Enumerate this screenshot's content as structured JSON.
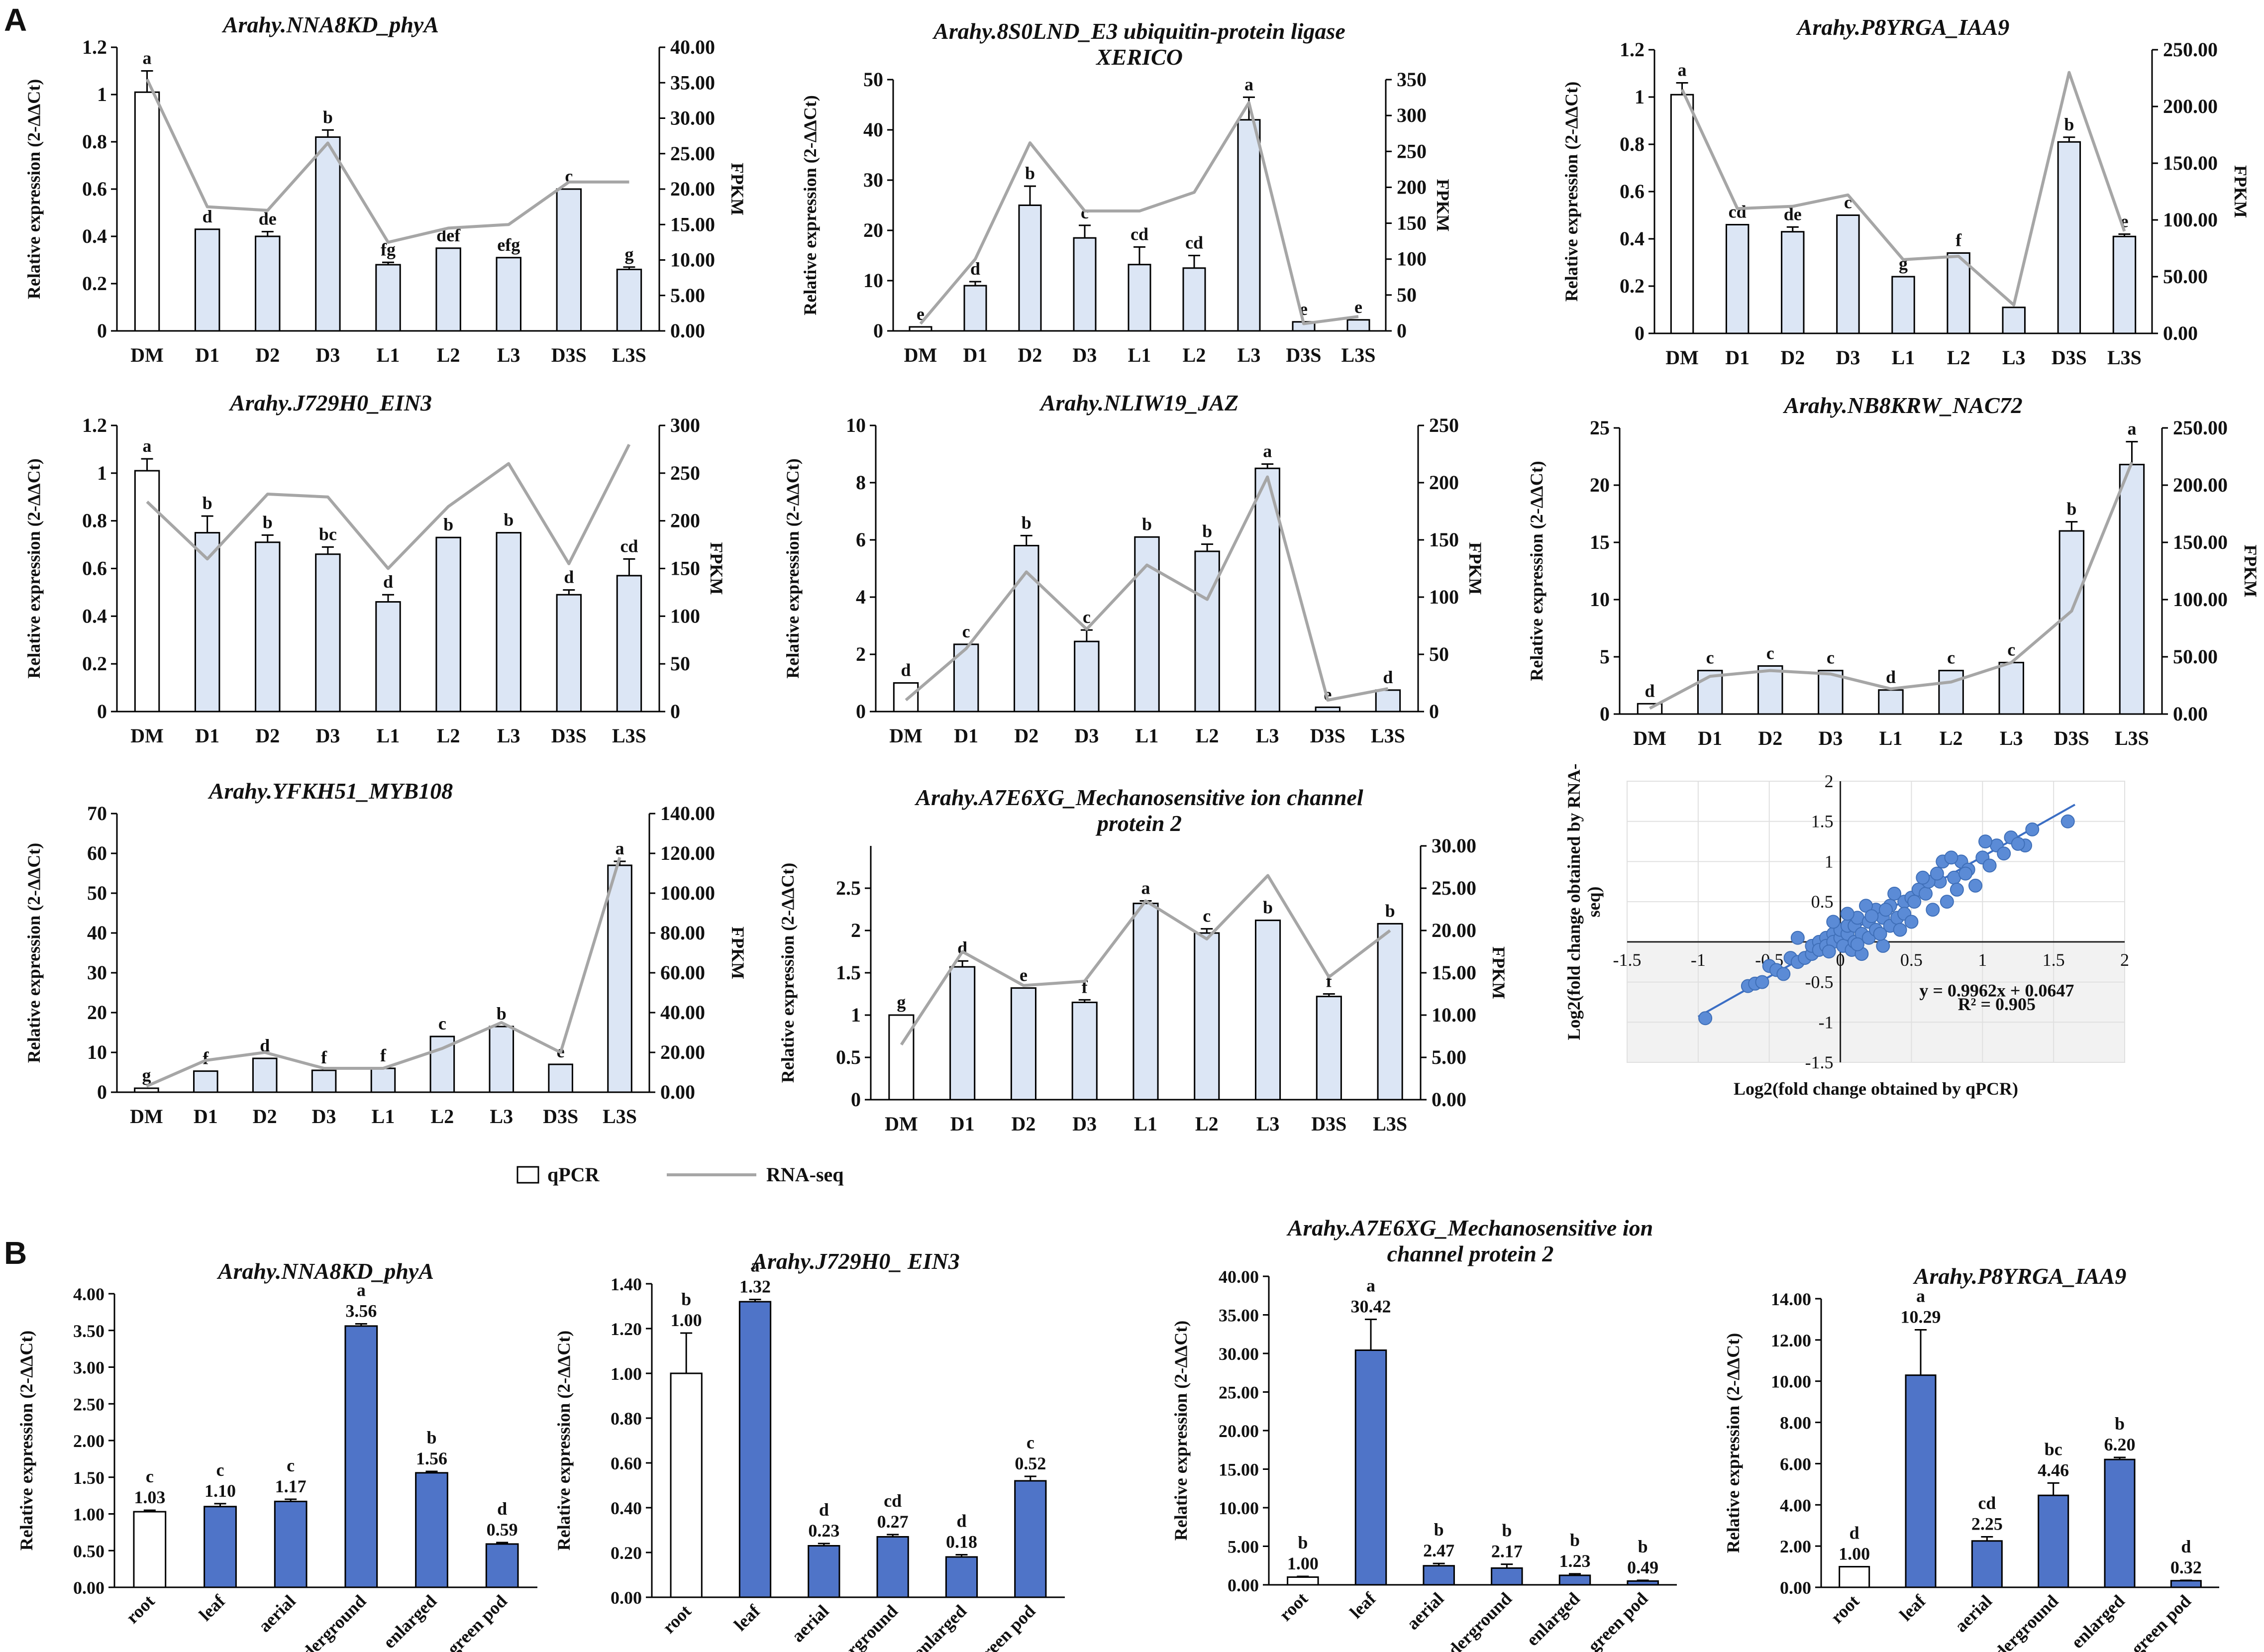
{
  "figure": {
    "panel_a_label": "A",
    "panel_b_label": "B",
    "legend": {
      "qpcr": "qPCR",
      "rnaseq": "RNA-seq"
    }
  },
  "colors": {
    "bar_light": "#dce6f5",
    "bar_white": "#ffffff",
    "bar_blue": "#4f74c8",
    "line": "#a6a6a6",
    "scatter": "#5b8bd6",
    "fit": "#3b6ec4",
    "axis": "#000000"
  },
  "chart_data": [
    {
      "type": "bar+line",
      "title": "Arahy.NNA8KD_phyA",
      "categories": [
        "DM",
        "D1",
        "D2",
        "D3",
        "L1",
        "L2",
        "L3",
        "D3S",
        "L3S"
      ],
      "values": [
        1.01,
        0.43,
        0.4,
        0.82,
        0.28,
        0.35,
        0.31,
        0.6,
        0.26
      ],
      "errors": [
        0.09,
        0,
        0.02,
        0.03,
        0.01,
        0,
        0,
        0,
        0.01
      ],
      "letters": [
        "a",
        "d",
        "de",
        "b",
        "fg",
        "def",
        "efg",
        "c",
        "g"
      ],
      "line": [
        35.5,
        17.5,
        17.0,
        26.5,
        12.5,
        14.5,
        15.0,
        21.0,
        21.0
      ],
      "ylabel": "Relative expression (2-ΔΔCt)",
      "y2label": "FPKM",
      "ylim": [
        0,
        1.2
      ],
      "yticks": [
        "0",
        "0.2",
        "0.4",
        "0.6",
        "0.8",
        "1",
        "1.2"
      ],
      "y2lim": [
        0,
        40
      ],
      "y2ticks": [
        "0.00",
        "5.00",
        "10.00",
        "15.00",
        "20.00",
        "25.00",
        "30.00",
        "35.00",
        "40.00"
      ]
    },
    {
      "type": "bar+line",
      "title": "Arahy.8S0LND_E3 ubiquitin-protein ligase XERICO",
      "categories": [
        "DM",
        "D1",
        "D2",
        "D3",
        "L1",
        "L2",
        "L3",
        "D3S",
        "L3S"
      ],
      "values": [
        0.8,
        9.0,
        25.0,
        18.5,
        13.2,
        12.5,
        42.0,
        1.8,
        2.2
      ],
      "errors": [
        0,
        0.8,
        3.8,
        2.5,
        3.5,
        2.5,
        4.5,
        0,
        0
      ],
      "letters": [
        "e",
        "d",
        "b",
        "c",
        "cd",
        "cd",
        "a",
        "e",
        "e"
      ],
      "line": [
        10,
        100,
        262,
        167,
        167,
        193,
        318,
        10,
        20
      ],
      "ylabel": "Relative expression (2-ΔΔCt)",
      "y2label": "FPKM",
      "ylim": [
        0,
        50
      ],
      "yticks": [
        "0",
        "10",
        "20",
        "30",
        "40",
        "50"
      ],
      "y2lim": [
        0,
        350
      ],
      "y2ticks": [
        "0",
        "50",
        "100",
        "150",
        "200",
        "250",
        "300",
        "350"
      ]
    },
    {
      "type": "bar+line",
      "title": "Arahy.P8YRGA_IAA9",
      "categories": [
        "DM",
        "D1",
        "D2",
        "D3",
        "L1",
        "L2",
        "L3",
        "D3S",
        "L3S"
      ],
      "values": [
        1.01,
        0.46,
        0.43,
        0.5,
        0.24,
        0.34,
        0.11,
        0.81,
        0.41
      ],
      "errors": [
        0.05,
        0,
        0.02,
        0,
        0,
        0,
        0,
        0.02,
        0.01
      ],
      "letters": [
        "a",
        "cd",
        "de",
        "c",
        "g",
        "f",
        "",
        "b",
        "e"
      ],
      "line": [
        215,
        110,
        112,
        122,
        65,
        68,
        25,
        230,
        90
      ],
      "ylabel": "Relative expression (2-ΔΔCt)",
      "y2label": "FPKM",
      "ylim": [
        0,
        1.2
      ],
      "yticks": [
        "0",
        "0.2",
        "0.4",
        "0.6",
        "0.8",
        "1",
        "1.2"
      ],
      "y2lim": [
        0,
        250
      ],
      "y2ticks": [
        "0.00",
        "50.00",
        "100.00",
        "150.00",
        "200.00",
        "250.00"
      ]
    },
    {
      "type": "bar+line",
      "title": "Arahy.J729H0_EIN3",
      "categories": [
        "DM",
        "D1",
        "D2",
        "D3",
        "L1",
        "L2",
        "L3",
        "D3S",
        "L3S"
      ],
      "values": [
        1.01,
        0.75,
        0.71,
        0.66,
        0.46,
        0.73,
        0.75,
        0.49,
        0.57
      ],
      "errors": [
        0.05,
        0.07,
        0.03,
        0.03,
        0.03,
        0,
        0,
        0.02,
        0.07
      ],
      "letters": [
        "a",
        "b",
        "b",
        "bc",
        "d",
        "b",
        "b",
        "d",
        "cd"
      ],
      "line": [
        220,
        160,
        228,
        225,
        150,
        215,
        260,
        155,
        280
      ],
      "ylabel": "Relative expression (2-ΔΔCt)",
      "y2label": "FPKM",
      "ylim": [
        0,
        1.2
      ],
      "yticks": [
        "0",
        "0.2",
        "0.4",
        "0.6",
        "0.8",
        "1",
        "1.2"
      ],
      "y2lim": [
        0,
        300
      ],
      "y2ticks": [
        "0",
        "50",
        "100",
        "150",
        "200",
        "250",
        "300"
      ]
    },
    {
      "type": "bar+line",
      "title": "Arahy.NLIW19_JAZ",
      "categories": [
        "DM",
        "D1",
        "D2",
        "D3",
        "L1",
        "L2",
        "L3",
        "D3S",
        "L3S"
      ],
      "values": [
        1.0,
        2.35,
        5.8,
        2.45,
        6.1,
        5.6,
        8.5,
        0.15,
        0.75
      ],
      "errors": [
        0,
        0,
        0.35,
        0.4,
        0,
        0.25,
        0.15,
        0,
        0
      ],
      "letters": [
        "d",
        "c",
        "b",
        "c",
        "b",
        "b",
        "a",
        "e",
        "d"
      ],
      "line": [
        10,
        55,
        122,
        72,
        128,
        98,
        205,
        10,
        20
      ],
      "ylabel": "Relative expression (2-ΔΔCt)",
      "y2label": "FPKM",
      "ylim": [
        0,
        10
      ],
      "yticks": [
        "0",
        "2",
        "4",
        "6",
        "8",
        "10"
      ],
      "y2lim": [
        0,
        250
      ],
      "y2ticks": [
        "0",
        "50",
        "100",
        "150",
        "200",
        "250"
      ]
    },
    {
      "type": "bar+line",
      "title": "Arahy.NB8KRW_NAC72",
      "categories": [
        "DM",
        "D1",
        "D2",
        "D3",
        "L1",
        "L2",
        "L3",
        "D3S",
        "L3S"
      ],
      "values": [
        0.9,
        3.8,
        4.2,
        3.8,
        2.1,
        3.8,
        4.5,
        16.0,
        21.8
      ],
      "errors": [
        0,
        0,
        0,
        0,
        0,
        0,
        0,
        0.8,
        2.0
      ],
      "letters": [
        "d",
        "c",
        "c",
        "c",
        "d",
        "c",
        "c",
        "b",
        "a"
      ],
      "line": [
        5,
        33,
        38,
        35,
        22,
        28,
        45,
        90,
        220
      ],
      "ylabel": "Relative expression (2-ΔΔCt)",
      "y2label": "FPKM",
      "ylim": [
        0,
        25
      ],
      "yticks": [
        "0",
        "5",
        "10",
        "15",
        "20",
        "25"
      ],
      "y2lim": [
        0,
        250
      ],
      "y2ticks": [
        "0.00",
        "50.00",
        "100.00",
        "150.00",
        "200.00",
        "250.00"
      ]
    },
    {
      "type": "bar+line",
      "title": "Arahy.YFKH51_MYB108",
      "categories": [
        "DM",
        "D1",
        "D2",
        "D3",
        "L1",
        "L2",
        "L3",
        "D3S",
        "L3S"
      ],
      "values": [
        1.0,
        5.3,
        8.5,
        5.5,
        6.0,
        14.0,
        16.5,
        7.0,
        57.0
      ],
      "errors": [
        0,
        0,
        0,
        0,
        0,
        0,
        0,
        0,
        1.0
      ],
      "letters": [
        "g",
        "f",
        "d",
        "f",
        "f",
        "c",
        "b",
        "e",
        "a"
      ],
      "line": [
        3,
        16,
        20,
        12,
        12,
        22,
        35,
        20,
        118
      ],
      "ylabel": "Relative expression (2-ΔΔCt)",
      "y2label": "FPKM",
      "ylim": [
        0,
        70
      ],
      "yticks": [
        "0",
        "10",
        "20",
        "30",
        "40",
        "50",
        "60",
        "70"
      ],
      "y2lim": [
        0,
        140
      ],
      "y2ticks": [
        "0.00",
        "20.00",
        "40.00",
        "60.00",
        "80.00",
        "100.00",
        "120.00",
        "140.00"
      ]
    },
    {
      "type": "bar+line",
      "title": "Arahy.A7E6XG_Mechanosensitive ion channel protein 2",
      "categories": [
        "DM",
        "D1",
        "D2",
        "D3",
        "L1",
        "L2",
        "L3",
        "D3S",
        "L3S"
      ],
      "values": [
        1.0,
        1.57,
        1.32,
        1.15,
        2.32,
        1.97,
        2.12,
        1.22,
        2.08
      ],
      "errors": [
        0,
        0.07,
        0,
        0.03,
        0.03,
        0.05,
        0,
        0.03,
        0
      ],
      "letters": [
        "g",
        "d",
        "e",
        "f",
        "a",
        "c",
        "b",
        "f",
        "b"
      ],
      "line": [
        6.5,
        17.5,
        13.5,
        14.0,
        23.5,
        19.0,
        26.5,
        14.5,
        20.0
      ],
      "ylabel": "Relative expression (2-ΔΔCt)",
      "y2label": "FPKM",
      "ylim": [
        0,
        3
      ],
      "yticks": [
        "0",
        "0.5",
        "1",
        "1.5",
        "2",
        "2.5"
      ],
      "y2lim": [
        0,
        30
      ],
      "y2ticks": [
        "0.00",
        "5.00",
        "10.00",
        "15.00",
        "20.00",
        "25.00",
        "30.00"
      ]
    },
    {
      "type": "scatter",
      "xlabel": "Log2(fold change obtained by qPCR)",
      "ylabel": "Log2(fold change obtained by RNA-seq)",
      "xlim": [
        -1.5,
        2
      ],
      "ylim": [
        -1.5,
        2
      ],
      "xticks": [
        "-1.5",
        "-1",
        "-0.5",
        "0",
        "0.5",
        "1",
        "1.5",
        "2"
      ],
      "yticks": [
        "-1.5",
        "-1",
        "-0.5",
        "0",
        "0.5",
        "1",
        "1.5",
        "2"
      ],
      "equation": "y = 0.9962x + 0.0647",
      "r2": "R² = 0.905",
      "slope": 0.9962,
      "intercept": 0.0647,
      "points": [
        [
          -0.95,
          -0.95
        ],
        [
          -0.65,
          -0.55
        ],
        [
          -0.6,
          -0.52
        ],
        [
          -0.55,
          -0.5
        ],
        [
          -0.5,
          -0.3
        ],
        [
          -0.45,
          -0.35
        ],
        [
          -0.4,
          -0.4
        ],
        [
          -0.35,
          -0.2
        ],
        [
          -0.3,
          -0.25
        ],
        [
          -0.3,
          0.05
        ],
        [
          -0.25,
          -0.2
        ],
        [
          -0.2,
          -0.15
        ],
        [
          -0.2,
          -0.05
        ],
        [
          -0.15,
          0.0
        ],
        [
          -0.15,
          -0.1
        ],
        [
          -0.1,
          0.05
        ],
        [
          -0.1,
          -0.05
        ],
        [
          -0.05,
          0.1
        ],
        [
          -0.05,
          0.0
        ],
        [
          0.0,
          0.05
        ],
        [
          0.0,
          0.15
        ],
        [
          0.02,
          -0.05
        ],
        [
          0.05,
          0.1
        ],
        [
          0.05,
          0.2
        ],
        [
          0.08,
          -0.1
        ],
        [
          0.1,
          0.0
        ],
        [
          0.1,
          0.2
        ],
        [
          0.12,
          0.3
        ],
        [
          0.15,
          0.1
        ],
        [
          0.15,
          -0.15
        ],
        [
          0.2,
          0.25
        ],
        [
          0.2,
          0.05
        ],
        [
          0.25,
          0.15
        ],
        [
          0.25,
          0.4
        ],
        [
          0.3,
          0.3
        ],
        [
          0.3,
          -0.05
        ],
        [
          0.35,
          0.45
        ],
        [
          0.35,
          0.2
        ],
        [
          0.4,
          0.3
        ],
        [
          0.45,
          0.5
        ],
        [
          0.45,
          0.35
        ],
        [
          0.5,
          0.55
        ],
        [
          0.5,
          0.25
        ],
        [
          0.55,
          0.65
        ],
        [
          0.6,
          0.6
        ],
        [
          0.65,
          0.4
        ],
        [
          0.7,
          0.75
        ],
        [
          0.75,
          0.5
        ],
        [
          0.8,
          0.8
        ],
        [
          0.85,
          1.0
        ],
        [
          0.9,
          0.9
        ],
        [
          0.95,
          0.7
        ],
        [
          1.0,
          1.05
        ],
        [
          1.05,
          0.95
        ],
        [
          1.1,
          1.2
        ],
        [
          1.15,
          1.1
        ],
        [
          1.2,
          1.3
        ],
        [
          1.3,
          1.2
        ],
        [
          1.35,
          1.4
        ],
        [
          1.6,
          1.5
        ],
        [
          -0.05,
          0.25
        ],
        [
          0.05,
          0.35
        ],
        [
          0.18,
          0.45
        ],
        [
          0.28,
          0.1
        ],
        [
          0.38,
          0.6
        ],
        [
          0.42,
          0.15
        ],
        [
          0.62,
          0.75
        ],
        [
          0.72,
          1.0
        ],
        [
          0.78,
          1.05
        ],
        [
          0.88,
          0.85
        ],
        [
          1.02,
          1.25
        ],
        [
          1.25,
          1.22
        ],
        [
          -0.08,
          -0.12
        ],
        [
          0.12,
          -0.03
        ],
        [
          0.22,
          0.32
        ],
        [
          0.32,
          0.4
        ],
        [
          0.52,
          0.5
        ],
        [
          0.58,
          0.8
        ],
        [
          0.68,
          0.85
        ],
        [
          0.82,
          0.65
        ]
      ]
    },
    {
      "type": "bar",
      "title": "Arahy.NNA8KD_phyA",
      "categories": [
        "root",
        "leaf",
        "aerial",
        "underground",
        "enlarged",
        "green pod"
      ],
      "values": [
        1.03,
        1.1,
        1.17,
        3.56,
        1.56,
        0.59
      ],
      "errors": [
        0.02,
        0.04,
        0.03,
        0.03,
        0.02,
        0.02
      ],
      "letters": [
        "c",
        "c",
        "c",
        "a",
        "b",
        "d"
      ],
      "labels": [
        "1.03",
        "1.10",
        "1.17",
        "3.56",
        "1.56",
        "0.59"
      ],
      "ylabel": "Relative expression (2-ΔΔCt)",
      "ylim": [
        0,
        4
      ],
      "yticks": [
        "0.00",
        "0.50",
        "1.00",
        "1.50",
        "2.00",
        "2.50",
        "3.00",
        "3.50",
        "4.00"
      ]
    },
    {
      "type": "bar",
      "title": "Arahy.J729H0_ EIN3",
      "categories": [
        "root",
        "leaf",
        "aerial",
        "underground",
        "enlarged",
        "green pod"
      ],
      "values": [
        1.0,
        1.32,
        0.23,
        0.27,
        0.18,
        0.52
      ],
      "errors": [
        0.18,
        0.01,
        0.01,
        0.01,
        0.01,
        0.02
      ],
      "letters": [
        "b",
        "a",
        "d",
        "cd",
        "d",
        "c"
      ],
      "labels": [
        "1.00",
        "1.32",
        "0.23",
        "0.27",
        "0.18",
        "0.52"
      ],
      "ylabel": "Relative expression (2-ΔΔCt)",
      "ylim": [
        0,
        1.4
      ],
      "yticks": [
        "0.00",
        "0.20",
        "0.40",
        "0.60",
        "0.80",
        "1.00",
        "1.20",
        "1.40"
      ]
    },
    {
      "type": "bar",
      "title": "Arahy.A7E6XG_Mechanosensitive ion channel protein 2",
      "categories": [
        "root",
        "leaf",
        "aerial",
        "underground",
        "enlarged",
        "green pod"
      ],
      "values": [
        1.0,
        30.42,
        2.47,
        2.17,
        1.23,
        0.49
      ],
      "errors": [
        0.1,
        4.0,
        0.3,
        0.5,
        0.2,
        0.1
      ],
      "letters": [
        "b",
        "a",
        "b",
        "b",
        "b",
        "b"
      ],
      "labels": [
        "1.00",
        "30.42",
        "2.47",
        "2.17",
        "1.23",
        "0.49"
      ],
      "ylabel": "Relative expression (2-ΔΔCt)",
      "ylim": [
        0,
        40
      ],
      "yticks": [
        "0.00",
        "5.00",
        "10.00",
        "15.00",
        "20.00",
        "25.00",
        "30.00",
        "35.00",
        "40.00"
      ]
    },
    {
      "type": "bar",
      "title": "Arahy.P8YRGA_IAA9",
      "categories": [
        "root",
        "leaf",
        "aerial",
        "underground",
        "enlarged",
        "green pod"
      ],
      "values": [
        1.0,
        10.29,
        2.25,
        4.46,
        6.2,
        0.32
      ],
      "errors": [
        0,
        2.2,
        0.2,
        0.6,
        0.1,
        0.02
      ],
      "letters": [
        "d",
        "a",
        "cd",
        "bc",
        "b",
        "d"
      ],
      "labels": [
        "1.00",
        "10.29",
        "2.25",
        "4.46",
        "6.20",
        "0.32"
      ],
      "ylabel": "Relative expression (2-ΔΔCt)",
      "ylim": [
        0,
        14
      ],
      "yticks": [
        "0.00",
        "2.00",
        "4.00",
        "6.00",
        "8.00",
        "10.00",
        "12.00",
        "14.00"
      ]
    }
  ]
}
